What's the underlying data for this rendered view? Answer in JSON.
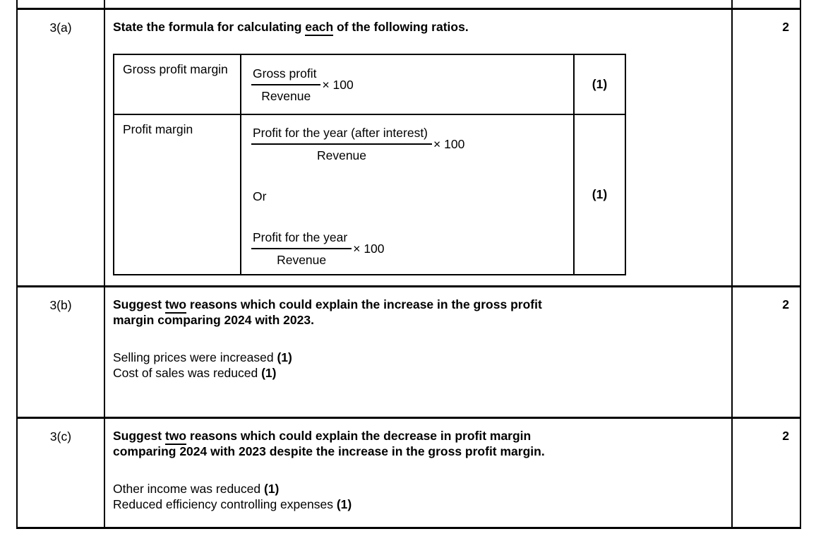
{
  "colors": {
    "background": "#ffffff",
    "text": "#000000",
    "border": "#000000"
  },
  "rows": {
    "a": {
      "number": "3(a)",
      "marks": "2",
      "question": {
        "pre": "State the formula for calculating ",
        "underlined": "each",
        "post": " of the following ratios."
      },
      "ratio_table": {
        "row1": {
          "label": "Gross profit margin",
          "formula1": {
            "numerator": "Gross profit",
            "denominator": "Revenue",
            "multiplier": "× 100"
          },
          "mark": "(1)"
        },
        "row2": {
          "label": "Profit margin",
          "formula1": {
            "numerator": "Profit for the year (after interest)",
            "denominator": "Revenue",
            "multiplier": "× 100"
          },
          "or_label": "Or",
          "formula2": {
            "numerator": "Profit for the year",
            "denominator": "Revenue",
            "multiplier": "× 100"
          },
          "mark": "(1)"
        }
      }
    },
    "b": {
      "number": "3(b)",
      "marks": "2",
      "question": {
        "pre": "Suggest ",
        "underlined": "two",
        "post": " reasons which could explain the increase in the gross profit",
        "post2": "margin comparing 2024 with 2023."
      },
      "answers": {
        "line1": {
          "text": "Selling prices were increased ",
          "mark": "(1)"
        },
        "line2": {
          "text": "Cost of sales was reduced ",
          "mark": "(1)"
        }
      }
    },
    "c": {
      "number": "3(c)",
      "marks": "2",
      "question": {
        "pre": "Suggest ",
        "underlined": "two",
        "post": " reasons which could explain the decrease in profit margin",
        "post2": "comparing 2024 with 2023 despite the increase in the gross profit margin."
      },
      "answers": {
        "line1": {
          "text": "Other income was reduced ",
          "mark": "(1)"
        },
        "line2": {
          "text": "Reduced efficiency controlling expenses ",
          "mark": "(1)"
        }
      }
    }
  }
}
